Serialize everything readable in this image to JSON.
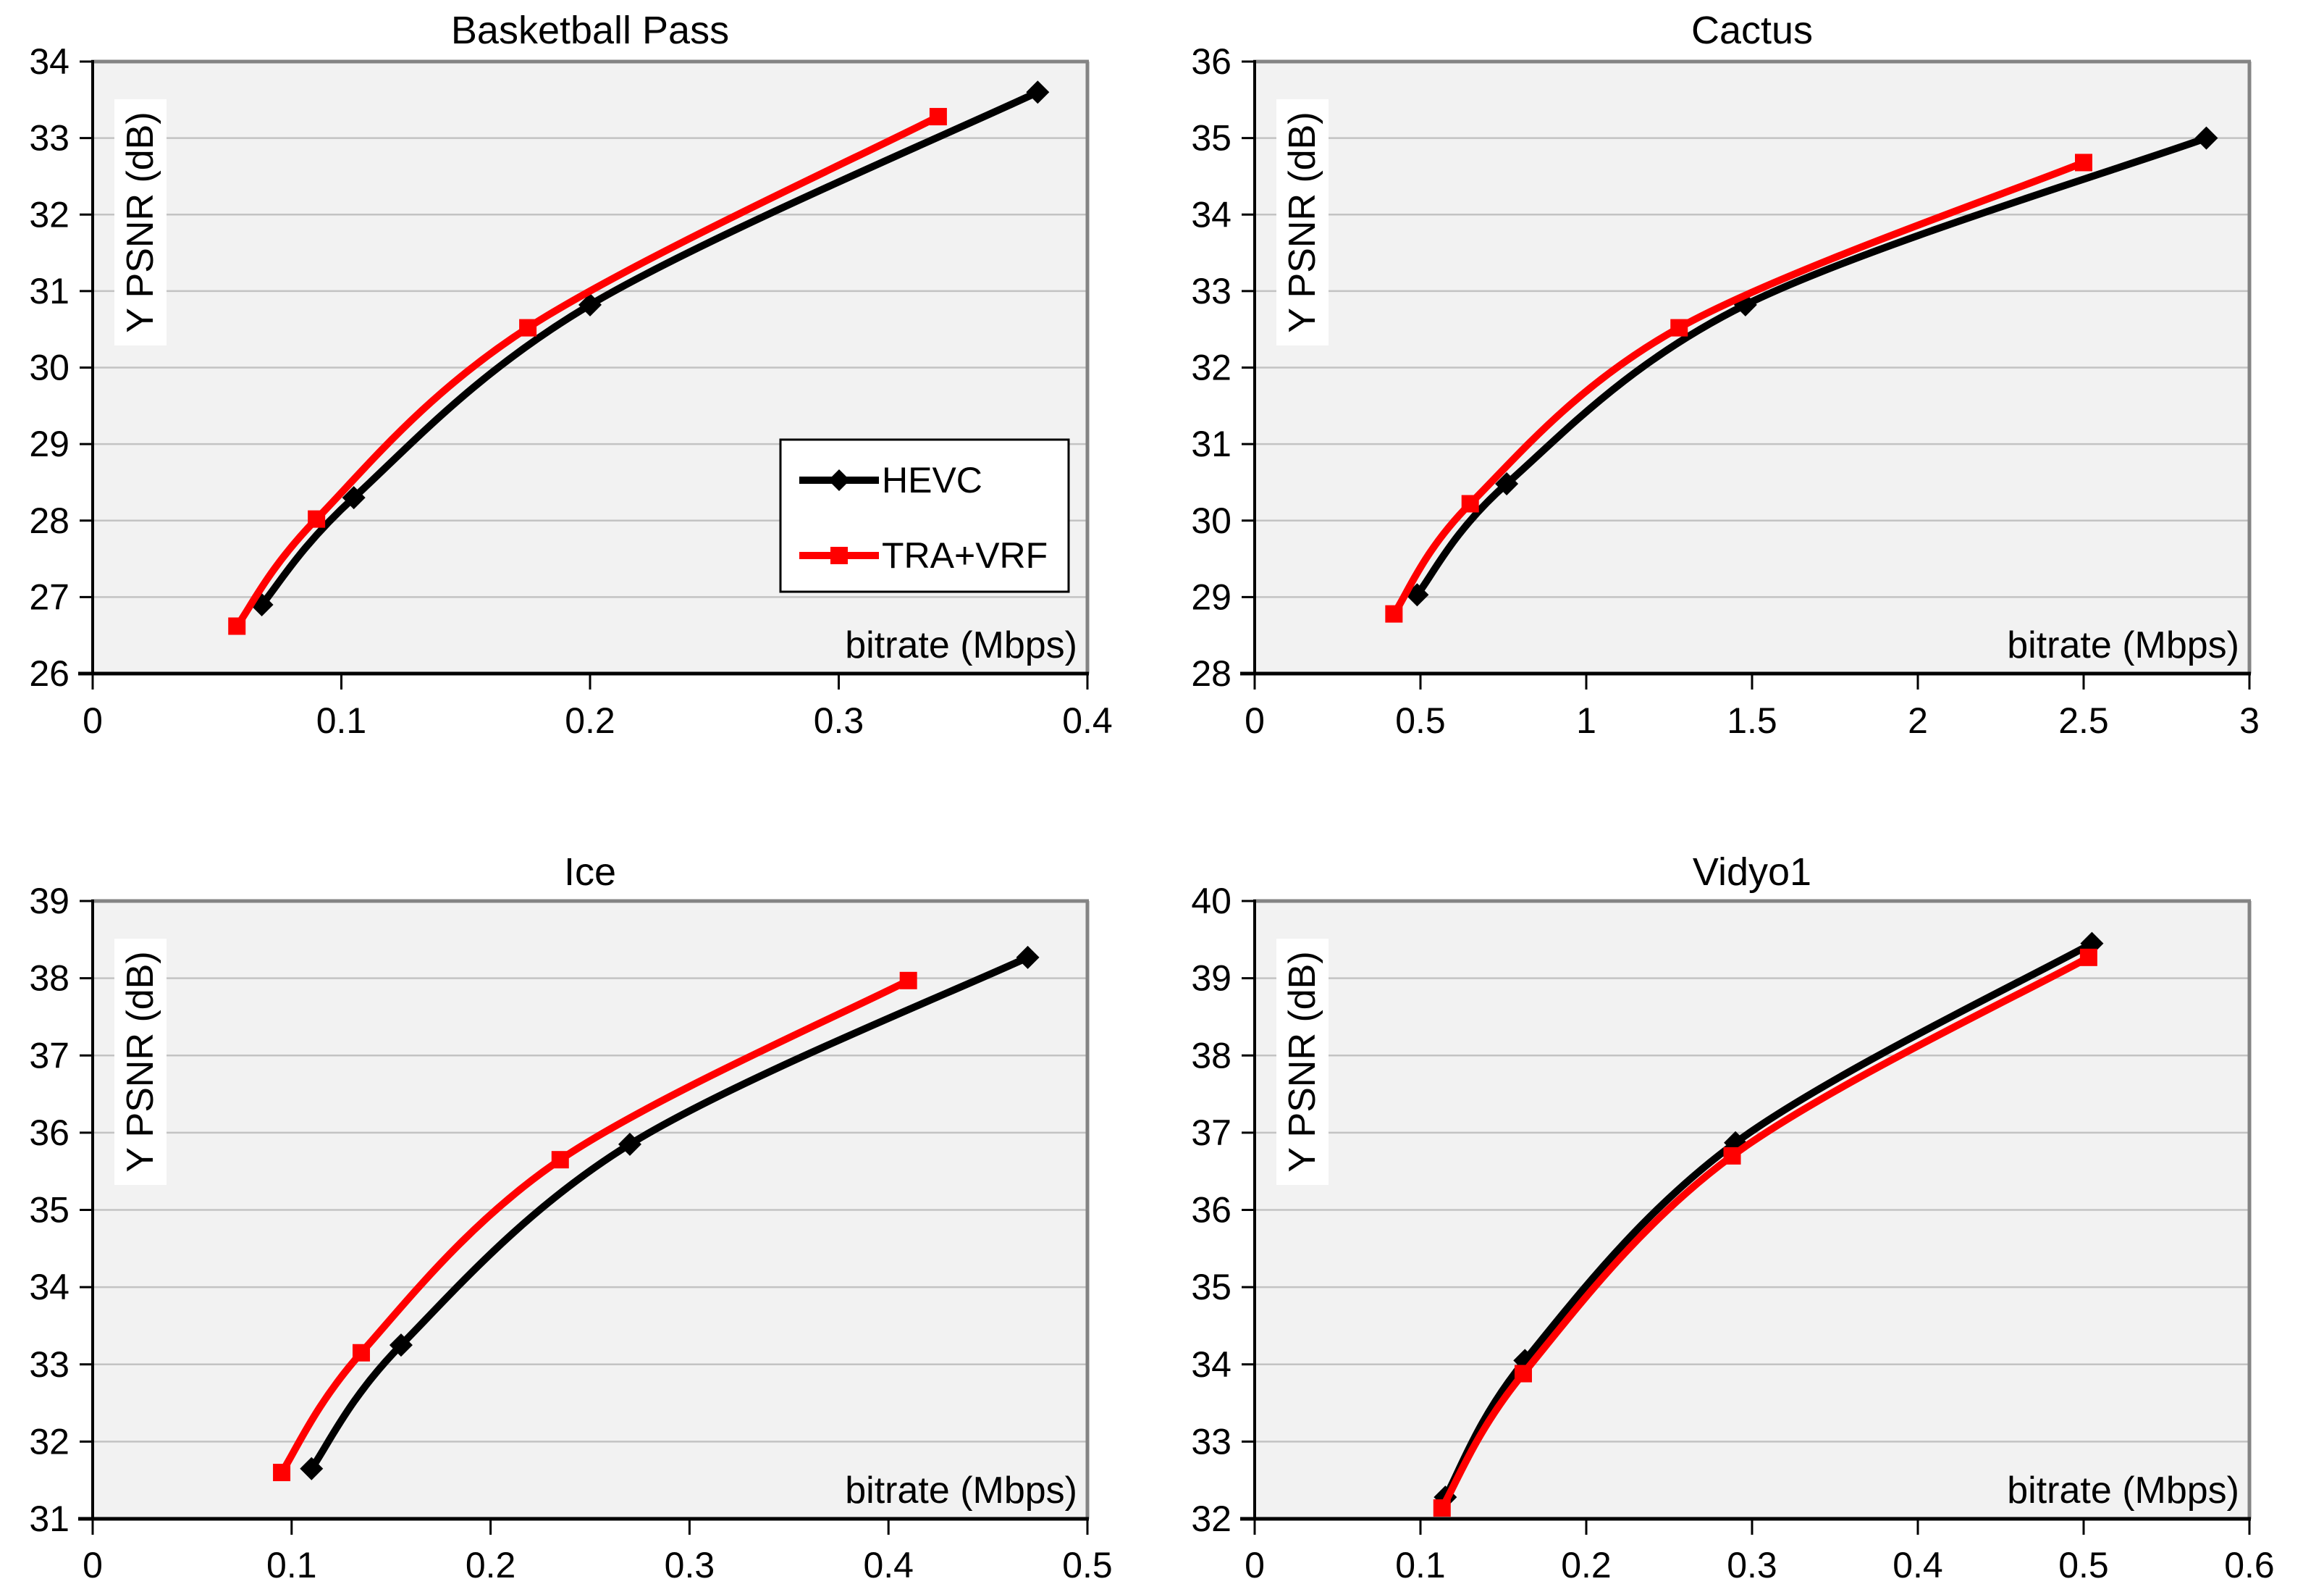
{
  "figure": {
    "background": "#ffffff",
    "plot_background": "#f2f2f2",
    "gridline_color": "#c3c3c3",
    "border_gray": "#848484",
    "axis_color": "#000000",
    "text_color": "#000000"
  },
  "legend": {
    "shown_on": "Basketball Pass",
    "entries": [
      {
        "label": "HEVC",
        "color": "#000000",
        "marker": "diamond"
      },
      {
        "label": "TRA+VRF",
        "color": "#ff0000",
        "marker": "square"
      }
    ]
  },
  "chart_data": [
    {
      "id": "basketball-pass",
      "type": "line",
      "title": "Basketball Pass",
      "xlabel": "bitrate (Mbps)",
      "ylabel": "Y PSNR (dB)",
      "xlim": [
        0,
        0.4
      ],
      "ylim": [
        26,
        34
      ],
      "xticks": [
        0,
        0.1,
        0.2,
        0.3,
        0.4
      ],
      "xtick_labels": [
        "0",
        "0.1",
        "0.2",
        "0.3",
        "0.4"
      ],
      "yticks": [
        26,
        27,
        28,
        29,
        30,
        31,
        32,
        33,
        34
      ],
      "ytick_labels": [
        "26",
        "27",
        "28",
        "29",
        "30",
        "31",
        "32",
        "33",
        "34"
      ],
      "grid": "horizontal",
      "show_legend": true,
      "series": [
        {
          "name": "HEVC",
          "color": "#000000",
          "marker": "diamond",
          "points": [
            [
              0.068,
              26.9
            ],
            [
              0.105,
              28.3
            ],
            [
              0.2,
              30.82
            ],
            [
              0.38,
              33.6
            ]
          ]
        },
        {
          "name": "TRA+VRF",
          "color": "#ff0000",
          "marker": "square",
          "points": [
            [
              0.058,
              26.62
            ],
            [
              0.09,
              28.02
            ],
            [
              0.175,
              30.52
            ],
            [
              0.34,
              33.28
            ]
          ]
        }
      ]
    },
    {
      "id": "cactus",
      "type": "line",
      "title": "Cactus",
      "xlabel": "bitrate (Mbps)",
      "ylabel": "Y PSNR (dB)",
      "xlim": [
        0,
        3
      ],
      "ylim": [
        28,
        36
      ],
      "xticks": [
        0,
        0.5,
        1,
        1.5,
        2,
        2.5,
        3
      ],
      "xtick_labels": [
        "0",
        "0.5",
        "1",
        "1.5",
        "2",
        "2.5",
        "3"
      ],
      "yticks": [
        28,
        29,
        30,
        31,
        32,
        33,
        34,
        35,
        36
      ],
      "ytick_labels": [
        "28",
        "29",
        "30",
        "31",
        "32",
        "33",
        "34",
        "35",
        "36"
      ],
      "grid": "horizontal",
      "show_legend": false,
      "series": [
        {
          "name": "HEVC",
          "color": "#000000",
          "marker": "diamond",
          "points": [
            [
              0.49,
              29.03
            ],
            [
              0.76,
              30.48
            ],
            [
              1.48,
              32.82
            ],
            [
              2.87,
              35.0
            ]
          ]
        },
        {
          "name": "TRA+VRF",
          "color": "#ff0000",
          "marker": "square",
          "points": [
            [
              0.42,
              28.78
            ],
            [
              0.65,
              30.22
            ],
            [
              1.28,
              32.52
            ],
            [
              2.5,
              34.68
            ]
          ]
        }
      ]
    },
    {
      "id": "ice",
      "type": "line",
      "title": "Ice",
      "xlabel": "bitrate (Mbps)",
      "ylabel": "Y PSNR (dB)",
      "xlim": [
        0,
        0.5
      ],
      "ylim": [
        31,
        39
      ],
      "xticks": [
        0,
        0.1,
        0.2,
        0.3,
        0.4,
        0.5
      ],
      "xtick_labels": [
        "0",
        "0.1",
        "0.2",
        "0.3",
        "0.4",
        "0.5"
      ],
      "yticks": [
        31,
        32,
        33,
        34,
        35,
        36,
        37,
        38,
        39
      ],
      "ytick_labels": [
        "31",
        "32",
        "33",
        "34",
        "35",
        "36",
        "37",
        "38",
        "39"
      ],
      "grid": "horizontal",
      "show_legend": false,
      "series": [
        {
          "name": "HEVC",
          "color": "#000000",
          "marker": "diamond",
          "points": [
            [
              0.11,
              31.65
            ],
            [
              0.155,
              33.25
            ],
            [
              0.27,
              35.85
            ],
            [
              0.47,
              38.27
            ]
          ]
        },
        {
          "name": "TRA+VRF",
          "color": "#ff0000",
          "marker": "square",
          "points": [
            [
              0.095,
              31.6
            ],
            [
              0.135,
              33.15
            ],
            [
              0.235,
              35.65
            ],
            [
              0.41,
              37.97
            ]
          ]
        }
      ]
    },
    {
      "id": "vidyo1",
      "type": "line",
      "title": "Vidyo1",
      "xlabel": "bitrate (Mbps)",
      "ylabel": "Y PSNR (dB)",
      "xlim": [
        0,
        0.6
      ],
      "ylim": [
        32,
        40
      ],
      "xticks": [
        0,
        0.1,
        0.2,
        0.3,
        0.4,
        0.5,
        0.6
      ],
      "xtick_labels": [
        "0",
        "0.1",
        "0.2",
        "0.3",
        "0.4",
        "0.5",
        "0.6"
      ],
      "yticks": [
        32,
        33,
        34,
        35,
        36,
        37,
        38,
        39,
        40
      ],
      "ytick_labels": [
        "32",
        "33",
        "34",
        "35",
        "36",
        "37",
        "38",
        "39",
        "40"
      ],
      "grid": "horizontal",
      "show_legend": false,
      "series": [
        {
          "name": "HEVC",
          "color": "#000000",
          "marker": "diamond",
          "points": [
            [
              0.115,
              32.28
            ],
            [
              0.163,
              34.05
            ],
            [
              0.29,
              36.87
            ],
            [
              0.505,
              39.45
            ]
          ]
        },
        {
          "name": "TRA+VRF",
          "color": "#ff0000",
          "marker": "square",
          "points": [
            [
              0.113,
              32.14
            ],
            [
              0.162,
              33.88
            ],
            [
              0.288,
              36.7
            ],
            [
              0.503,
              39.27
            ]
          ]
        }
      ]
    }
  ]
}
